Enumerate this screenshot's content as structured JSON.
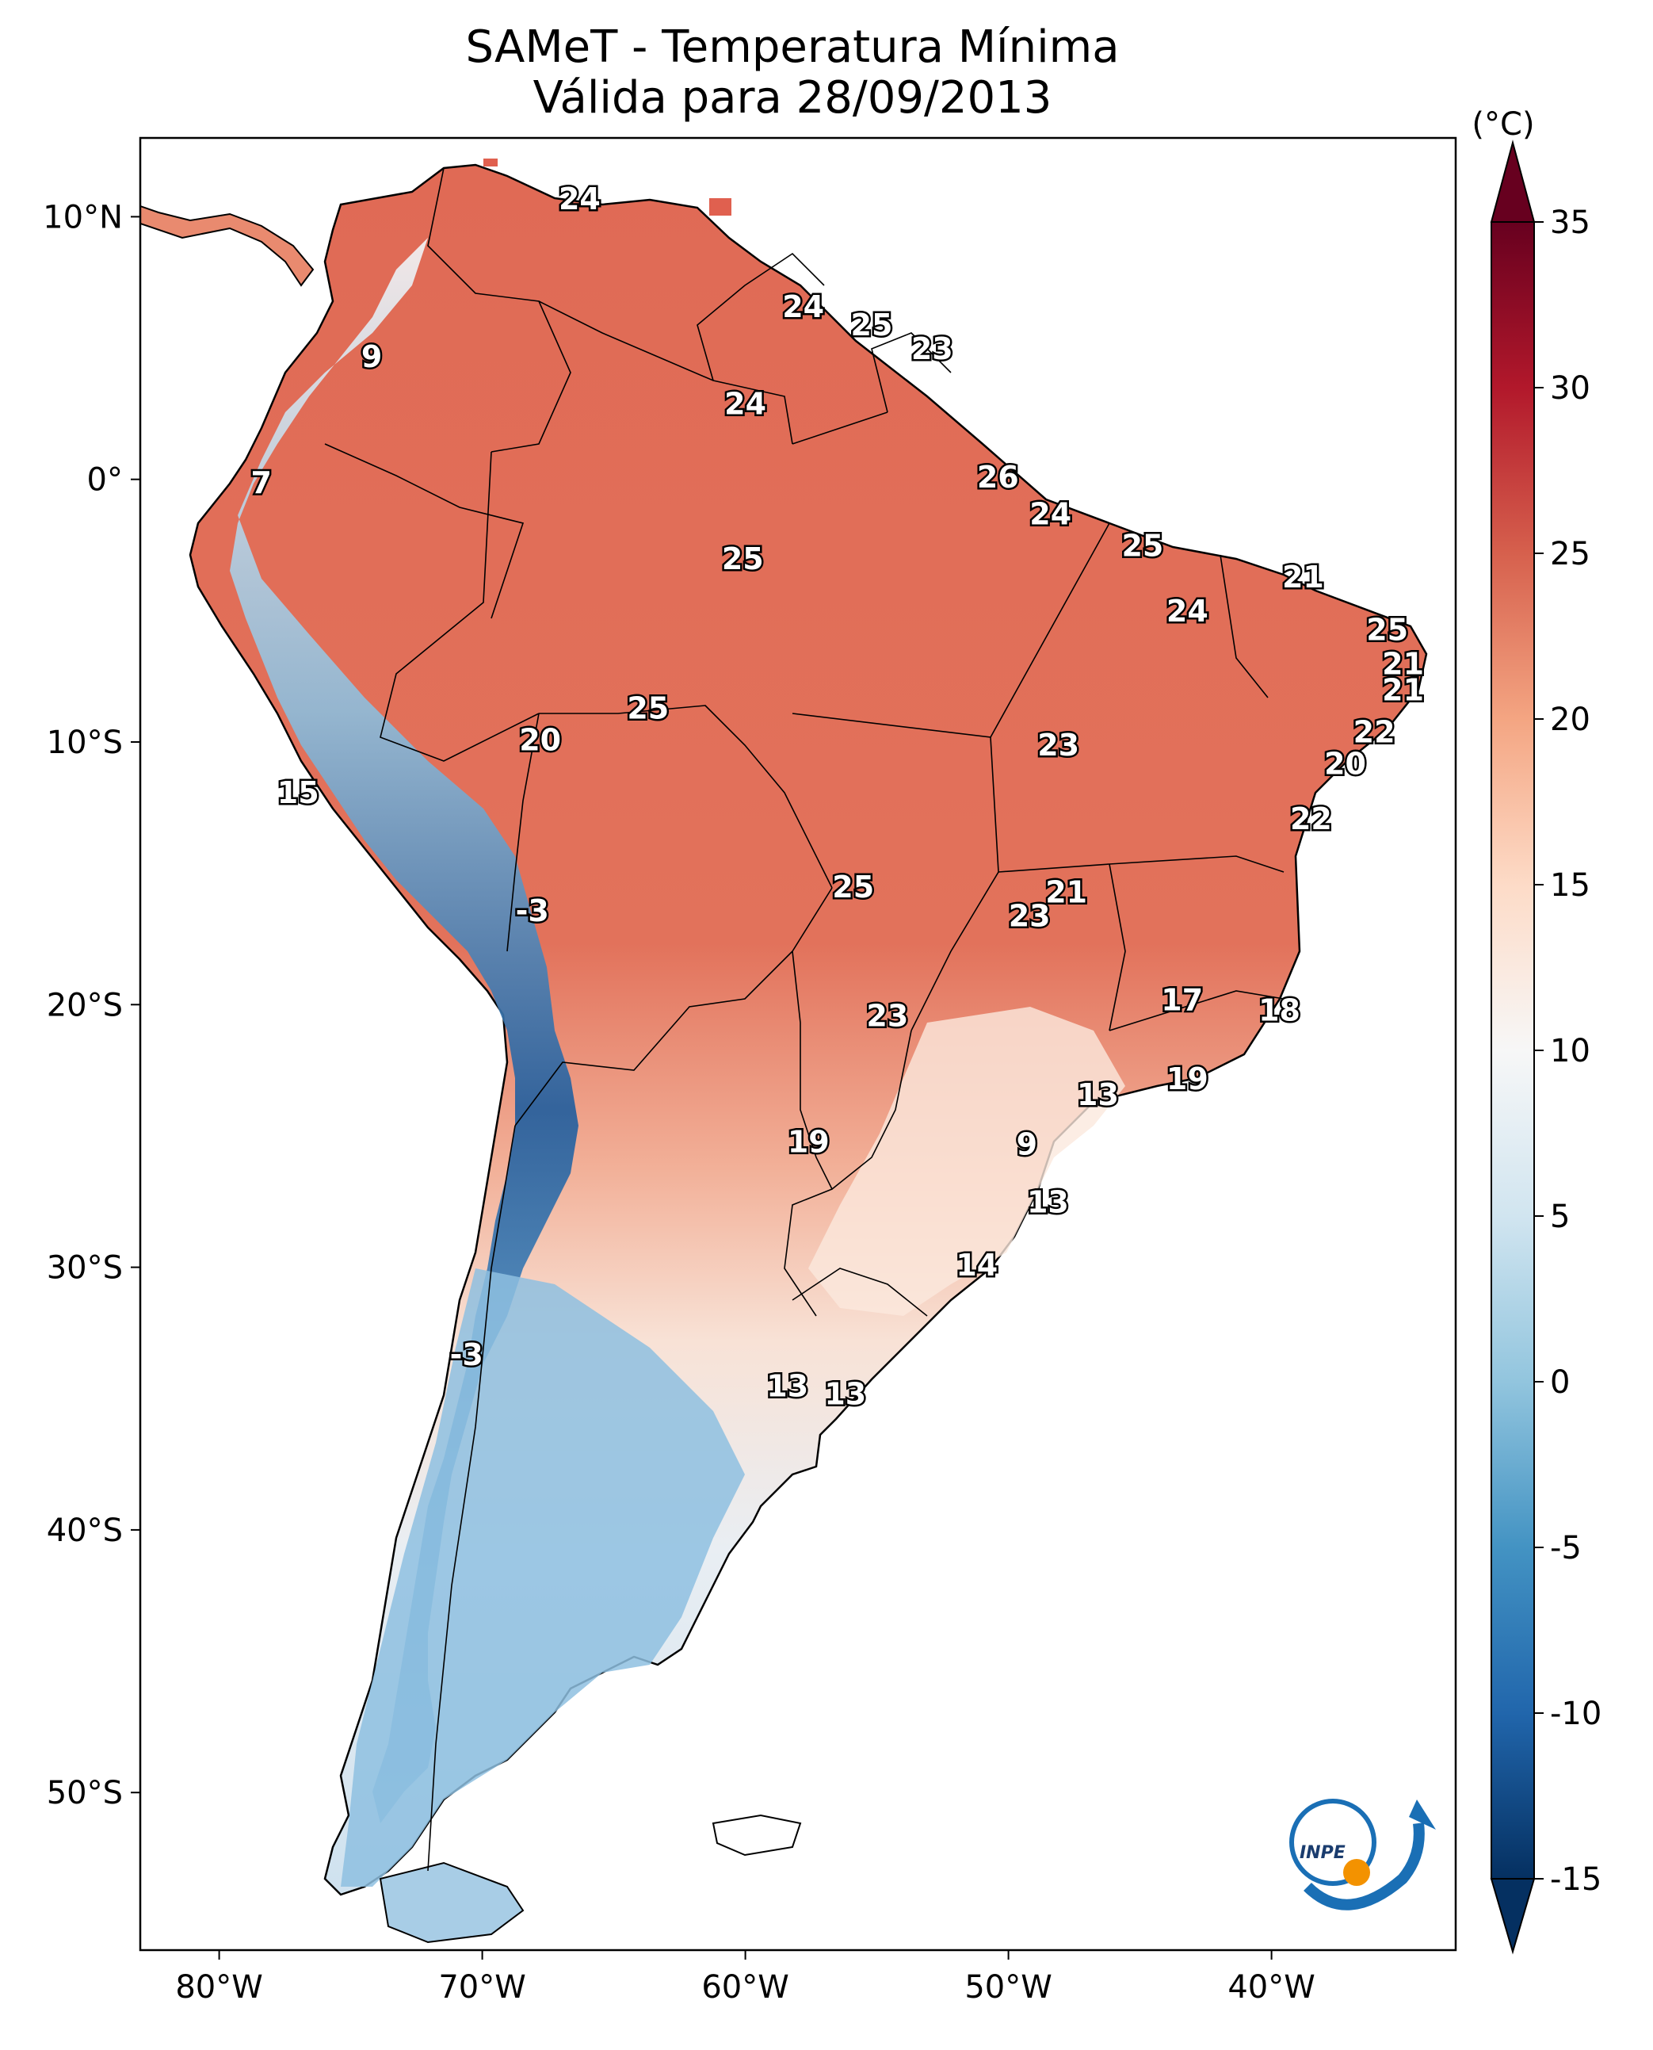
{
  "title": {
    "line1": "SAMeT - Temperatura Mínima",
    "line2": "Válida para 28/09/2013"
  },
  "map": {
    "lon_range": [
      -83,
      -33
    ],
    "lat_range": [
      -56,
      13
    ],
    "lon_ticks": [
      {
        "value": -80,
        "label": "80°W"
      },
      {
        "value": -70,
        "label": "70°W"
      },
      {
        "value": -60,
        "label": "60°W"
      },
      {
        "value": -50,
        "label": "50°W"
      },
      {
        "value": -40,
        "label": "40°W"
      }
    ],
    "lat_ticks": [
      {
        "value": 10,
        "label": "10°N"
      },
      {
        "value": 0,
        "label": "0°"
      },
      {
        "value": -10,
        "label": "10°S"
      },
      {
        "value": -20,
        "label": "20°S"
      },
      {
        "value": -30,
        "label": "30°S"
      },
      {
        "value": -40,
        "label": "40°S"
      },
      {
        "value": -50,
        "label": "50°S"
      }
    ],
    "station_values": [
      {
        "lon": -66.3,
        "lat": 10.6,
        "value": "24"
      },
      {
        "lon": -74.2,
        "lat": 4.6,
        "value": "9"
      },
      {
        "lon": -78.4,
        "lat": -0.2,
        "value": "7"
      },
      {
        "lon": -57.8,
        "lat": 6.5,
        "value": "24"
      },
      {
        "lon": -55.2,
        "lat": 5.8,
        "value": "25"
      },
      {
        "lon": -52.9,
        "lat": 4.9,
        "value": "23"
      },
      {
        "lon": -60.0,
        "lat": 2.8,
        "value": "24"
      },
      {
        "lon": -50.4,
        "lat": 0.0,
        "value": "26"
      },
      {
        "lon": -48.4,
        "lat": -1.4,
        "value": "24"
      },
      {
        "lon": -44.9,
        "lat": -2.6,
        "value": "25"
      },
      {
        "lon": -60.1,
        "lat": -3.1,
        "value": "25"
      },
      {
        "lon": -38.8,
        "lat": -3.8,
        "value": "21"
      },
      {
        "lon": -43.2,
        "lat": -5.1,
        "value": "24"
      },
      {
        "lon": -35.6,
        "lat": -5.8,
        "value": "25"
      },
      {
        "lon": -35.0,
        "lat": -7.1,
        "value": "21"
      },
      {
        "lon": -35.0,
        "lat": -8.1,
        "value": "21"
      },
      {
        "lon": -36.1,
        "lat": -9.7,
        "value": "22"
      },
      {
        "lon": -63.7,
        "lat": -8.8,
        "value": "25"
      },
      {
        "lon": -67.8,
        "lat": -10.0,
        "value": "20"
      },
      {
        "lon": -48.1,
        "lat": -10.2,
        "value": "23"
      },
      {
        "lon": -37.2,
        "lat": -10.9,
        "value": "20"
      },
      {
        "lon": -77.0,
        "lat": -12.0,
        "value": "15"
      },
      {
        "lon": -38.5,
        "lat": -13.0,
        "value": "22"
      },
      {
        "lon": -55.9,
        "lat": -15.6,
        "value": "25"
      },
      {
        "lon": -47.8,
        "lat": -15.8,
        "value": "21"
      },
      {
        "lon": -49.2,
        "lat": -16.7,
        "value": "23"
      },
      {
        "lon": -68.1,
        "lat": -16.5,
        "value": "-3"
      },
      {
        "lon": -43.4,
        "lat": -19.9,
        "value": "17"
      },
      {
        "lon": -54.6,
        "lat": -20.5,
        "value": "23"
      },
      {
        "lon": -39.7,
        "lat": -20.3,
        "value": "18"
      },
      {
        "lon": -43.2,
        "lat": -22.9,
        "value": "19"
      },
      {
        "lon": -46.6,
        "lat": -23.5,
        "value": "13"
      },
      {
        "lon": -57.6,
        "lat": -25.3,
        "value": "19"
      },
      {
        "lon": -49.3,
        "lat": -25.4,
        "value": "9"
      },
      {
        "lon": -48.5,
        "lat": -27.6,
        "value": "13"
      },
      {
        "lon": -51.2,
        "lat": -30.0,
        "value": "14"
      },
      {
        "lon": -70.6,
        "lat": -33.4,
        "value": "-3"
      },
      {
        "lon": -58.4,
        "lat": -34.6,
        "value": "13"
      },
      {
        "lon": -56.2,
        "lat": -34.9,
        "value": "13"
      }
    ]
  },
  "colorbar": {
    "unit": "(°C)",
    "min": -15,
    "max": 35,
    "ticks": [
      "35",
      "30",
      "25",
      "20",
      "15",
      "10",
      "5",
      "0",
      "-5",
      "-10",
      "-15"
    ],
    "colors": [
      "#053061",
      "#2166ac",
      "#4393c3",
      "#92c5de",
      "#d1e5f0",
      "#f7f7f7",
      "#fddbc7",
      "#f4a582",
      "#d6604d",
      "#b2182b",
      "#67001f"
    ]
  },
  "logo": {
    "text": "INPE"
  }
}
